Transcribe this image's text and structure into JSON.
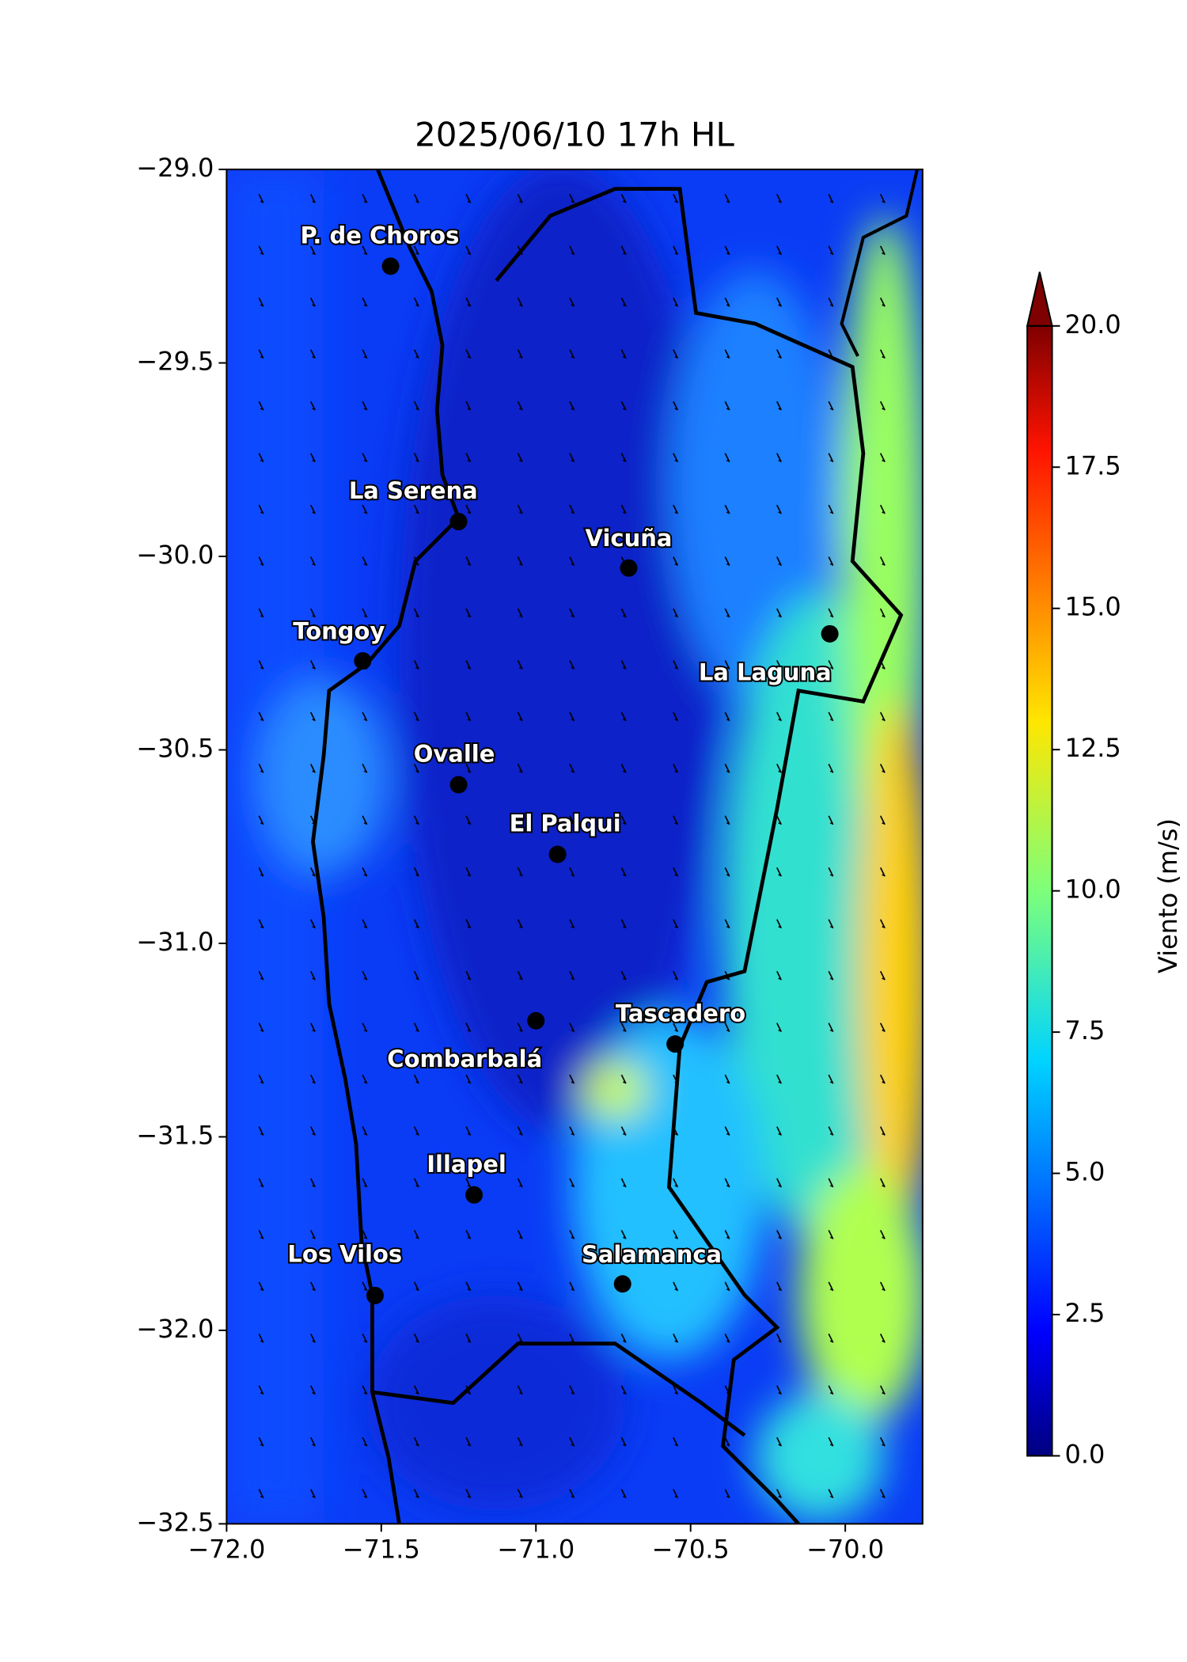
{
  "chart_data": {
    "type": "map",
    "title": "2025/06/10 17h HL",
    "xlim": [
      -72.0,
      -69.75
    ],
    "ylim": [
      -32.5,
      -29.0
    ],
    "xticks": [
      {
        "value": -72.0,
        "label": "−72.0"
      },
      {
        "value": -71.5,
        "label": "−71.5"
      },
      {
        "value": -71.0,
        "label": "−71.0"
      },
      {
        "value": -70.5,
        "label": "−70.5"
      },
      {
        "value": -70.0,
        "label": "−70.0"
      }
    ],
    "yticks": [
      {
        "value": -29.0,
        "label": "−29.0"
      },
      {
        "value": -29.5,
        "label": "−29.5"
      },
      {
        "value": -30.0,
        "label": "−30.0"
      },
      {
        "value": -30.5,
        "label": "−30.5"
      },
      {
        "value": -31.0,
        "label": "−31.0"
      },
      {
        "value": -31.5,
        "label": "−31.5"
      },
      {
        "value": -32.0,
        "label": "−32.0"
      },
      {
        "value": -32.5,
        "label": "−32.5"
      }
    ],
    "cities": [
      {
        "name": "P. de Choros",
        "lon": -71.47,
        "lat": -29.25
      },
      {
        "name": "La Serena",
        "lon": -71.25,
        "lat": -29.91
      },
      {
        "name": "Vicuña",
        "lon": -70.7,
        "lat": -30.03
      },
      {
        "name": "La Laguna",
        "lon": -70.05,
        "lat": -30.2
      },
      {
        "name": "Tongoy",
        "lon": -71.56,
        "lat": -30.27
      },
      {
        "name": "Ovalle",
        "lon": -71.25,
        "lat": -30.59
      },
      {
        "name": "El Palqui",
        "lon": -70.93,
        "lat": -30.77
      },
      {
        "name": "Combarbalá",
        "lon": -71.0,
        "lat": -31.2
      },
      {
        "name": "Tascadero",
        "lon": -70.55,
        "lat": -31.26
      },
      {
        "name": "Illapel",
        "lon": -71.2,
        "lat": -31.65
      },
      {
        "name": "Los Vilos",
        "lon": -71.52,
        "lat": -31.91
      },
      {
        "name": "Salamanca",
        "lon": -70.72,
        "lat": -31.88
      }
    ],
    "colorbar": {
      "label": "Viento (m/s)",
      "lim": [
        0.0,
        20.0
      ],
      "ticks": [
        {
          "value": 0,
          "label": "0.0"
        },
        {
          "value": 2.5,
          "label": "2.5"
        },
        {
          "value": 5,
          "label": "5.0"
        },
        {
          "value": 7.5,
          "label": "7.5"
        },
        {
          "value": 10,
          "label": "10.0"
        },
        {
          "value": 12.5,
          "label": "12.5"
        },
        {
          "value": 15,
          "label": "15.0"
        },
        {
          "value": 17.5,
          "label": "17.5"
        },
        {
          "value": 20,
          "label": "20.0"
        }
      ]
    }
  }
}
